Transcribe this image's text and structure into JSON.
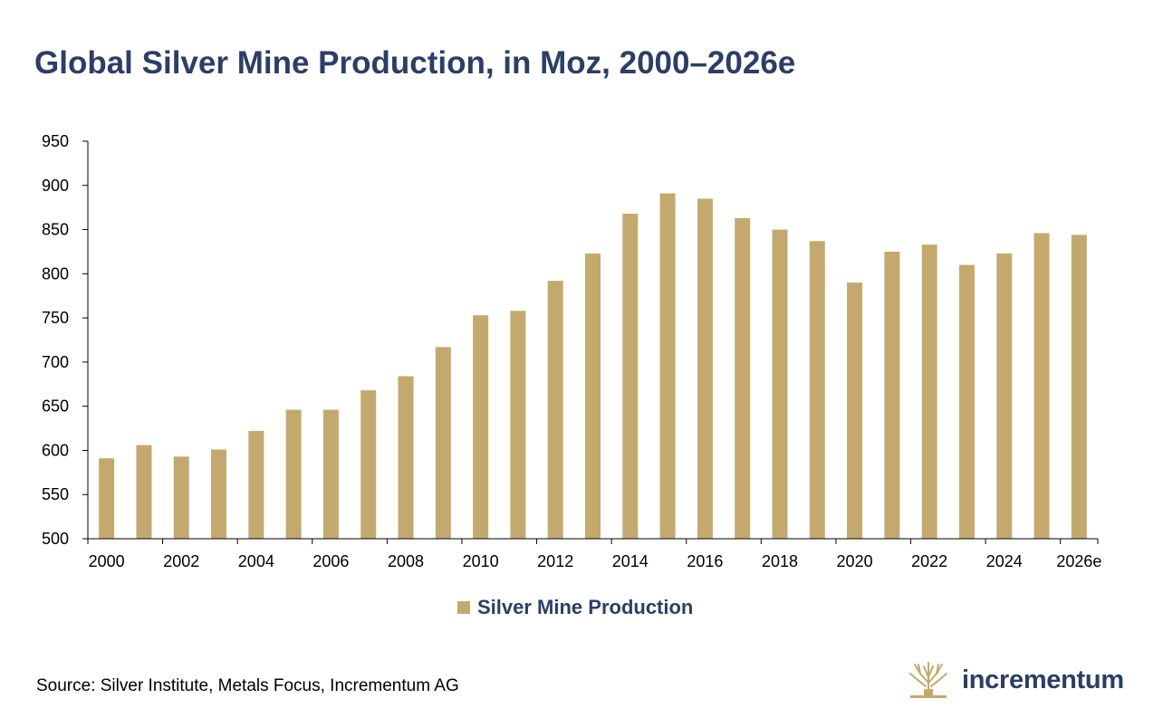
{
  "colors": {
    "bar": "#c4a96e",
    "title": "#2c3e66",
    "axis": "#000000",
    "logo": "#c4a96e"
  },
  "icons": {
    "logo": "tree-logo-icon"
  },
  "chart_data": {
    "type": "bar",
    "title": "Global Silver Mine Production, in Moz, 2000–2026e",
    "xlabel": "",
    "ylabel": "",
    "ylim": [
      500,
      950
    ],
    "yticks": [
      "500",
      "550",
      "600",
      "650",
      "700",
      "750",
      "800",
      "850",
      "900",
      "950"
    ],
    "categories": [
      "2000",
      "2001",
      "2002",
      "2003",
      "2004",
      "2005",
      "2006",
      "2007",
      "2008",
      "2009",
      "2010",
      "2011",
      "2012",
      "2013",
      "2014",
      "2015",
      "2016",
      "2017",
      "2018",
      "2019",
      "2020",
      "2021",
      "2022",
      "2023",
      "2024",
      "2025",
      "2026e"
    ],
    "xtick_labels": [
      "2000",
      "2002",
      "2004",
      "2006",
      "2008",
      "2010",
      "2012",
      "2014",
      "2016",
      "2018",
      "2020",
      "2022",
      "2024",
      "2026e"
    ],
    "series": [
      {
        "name": "Silver Mine Production",
        "values": [
          591,
          606,
          593,
          601,
          622,
          646,
          646,
          668,
          684,
          717,
          753,
          758,
          792,
          823,
          868,
          891,
          885,
          863,
          850,
          837,
          790,
          825,
          833,
          810,
          823,
          846,
          844
        ]
      }
    ],
    "grid": false,
    "legend": "bottom-center"
  },
  "legend_label": "Silver Mine Production",
  "source": "Source: Silver Institute, Metals Focus, Incrementum AG",
  "brand": "incrementum"
}
